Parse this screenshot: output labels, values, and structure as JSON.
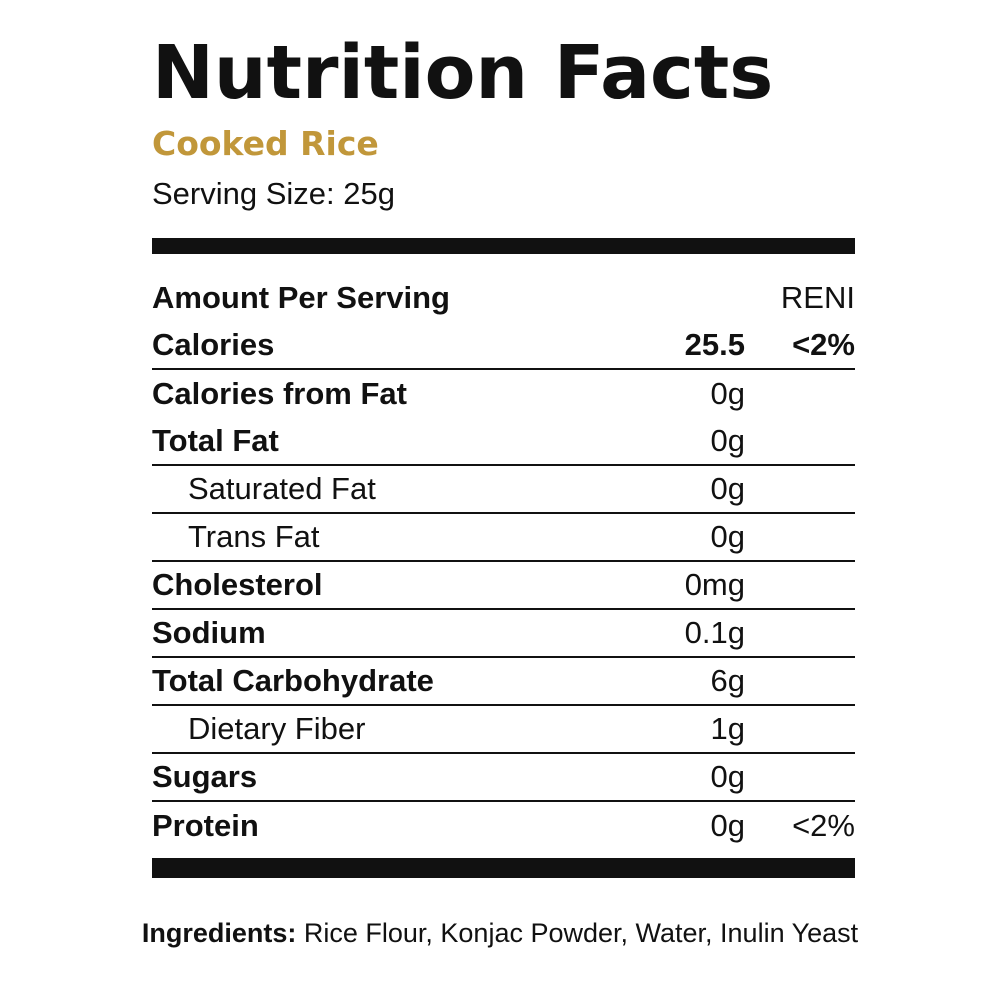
{
  "label": {
    "title": "Nutrition Facts",
    "subtitle": "Cooked Rice",
    "serving_size": "Serving Size: 25g",
    "header": {
      "amount_label": "Amount Per Serving",
      "dv_label": "RENI"
    },
    "calories": {
      "name": "Calories",
      "amount": "25.5",
      "dv": "<2%"
    },
    "rows": [
      {
        "name": "Calories from Fat",
        "amount": "0g",
        "dv": ""
      },
      {
        "name": "Total Fat",
        "amount": "0g",
        "dv": ""
      },
      {
        "name": "Saturated Fat",
        "amount": "0g",
        "dv": ""
      },
      {
        "name": "Trans Fat",
        "amount": "0g",
        "dv": ""
      },
      {
        "name": "Cholesterol",
        "amount": "0mg",
        "dv": ""
      },
      {
        "name": "Sodium",
        "amount": "0.1g",
        "dv": ""
      },
      {
        "name": "Total Carbohydrate",
        "amount": "6g",
        "dv": ""
      },
      {
        "name": "Dietary Fiber",
        "amount": "1g",
        "dv": ""
      },
      {
        "name": "Sugars",
        "amount": "0g",
        "dv": ""
      },
      {
        "name": "Protein",
        "amount": "0g",
        "dv": "<2%"
      }
    ],
    "ingredients": {
      "label": "Ingredients:",
      "text": "Rice Flour, Konjac Powder, Water, Inulin Yeast"
    }
  },
  "colors": {
    "subtitle": "#c1973a",
    "text": "#111111",
    "background": "#ffffff"
  }
}
